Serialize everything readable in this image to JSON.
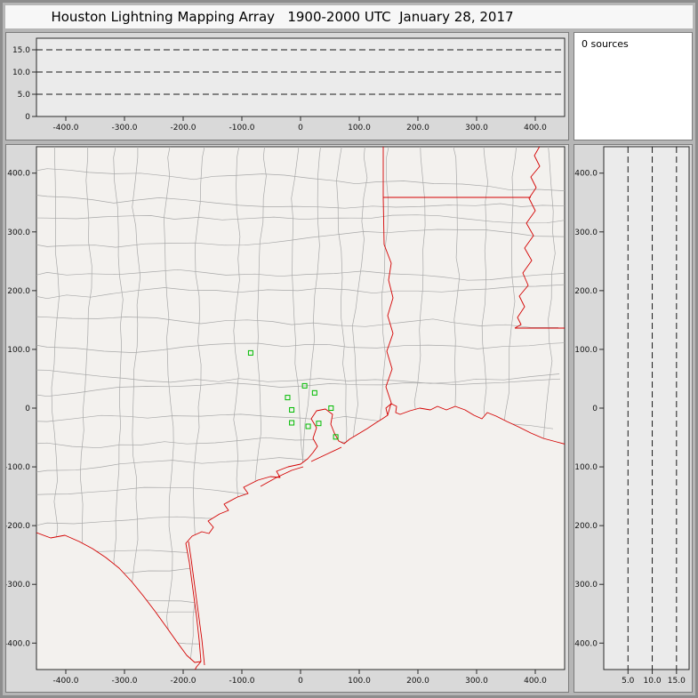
{
  "title": "Houston Lightning Mapping Array   1900-2000 UTC  January 28, 2017",
  "colors": {
    "boundary_red": "#d40000",
    "county_gray": "#a8a8a8",
    "station_green": "#00bb00",
    "grid_line": "#1a1a1a",
    "axis": "#2a2a2a",
    "plot_bg_side": "#ebebeb",
    "plot_bg_map": "#f3f1ee",
    "panel_bg": "#d9d9d9",
    "window_bg": "#b6b6b6"
  },
  "chart_data": [
    {
      "id": "height-vs-eastwest",
      "type": "scatter",
      "x_range": [
        -450,
        450
      ],
      "y_range": [
        0,
        17.6
      ],
      "x_ticks": [
        -400,
        -300,
        -200,
        -100,
        0,
        100,
        200,
        300,
        400
      ],
      "x_tick_labels": [
        "-400.0",
        "-300.0",
        "-200.0",
        "-100.0",
        "0",
        "100.0",
        "200.0",
        "300.0",
        "400.0"
      ],
      "y_ticks": [
        0,
        5,
        10,
        15
      ],
      "y_tick_labels": [
        "0",
        "5.0",
        "10.0",
        "15.0"
      ],
      "y_gridlines": [
        5,
        10,
        15
      ],
      "grid_style": "dashed",
      "points": []
    },
    {
      "id": "source-count",
      "type": "text",
      "label": "0 sources"
    },
    {
      "id": "plan-view-map",
      "type": "scatter",
      "x_range": [
        -450,
        450
      ],
      "y_range": [
        -445,
        445
      ],
      "x_ticks": [
        -400,
        -300,
        -200,
        -100,
        0,
        100,
        200,
        300,
        400
      ],
      "x_tick_labels": [
        "-400.0",
        "-300.0",
        "-200.0",
        "-100.0",
        "0",
        "100.0",
        "200.0",
        "300.0",
        "400.0"
      ],
      "y_ticks": [
        400,
        300,
        200,
        100,
        0,
        -100,
        -200,
        -300,
        -400
      ],
      "y_tick_labels": [
        "400.0",
        "300.0",
        "200.0",
        "100.0",
        "0",
        "-100.0",
        "-200.0",
        "-300.0",
        "-400.0"
      ],
      "map_features": [
        "county-boundaries",
        "state-boundaries",
        "coastline",
        "rivers"
      ],
      "points": [],
      "stations": [
        [
          -85,
          94
        ],
        [
          7,
          38
        ],
        [
          -22,
          18
        ],
        [
          24,
          26
        ],
        [
          -15,
          -3
        ],
        [
          52,
          0
        ],
        [
          -15,
          -25
        ],
        [
          13,
          -31
        ],
        [
          31,
          -26
        ],
        [
          60,
          -49
        ]
      ]
    },
    {
      "id": "height-vs-northsouth",
      "type": "scatter",
      "x_range": [
        0,
        17.6
      ],
      "y_range": [
        -445,
        445
      ],
      "x_ticks": [
        5,
        10,
        15
      ],
      "x_tick_labels": [
        "5.0",
        "10.0",
        "15.0"
      ],
      "x_gridlines": [
        5,
        10,
        15
      ],
      "grid_style": "dashed",
      "y_ticks": [
        400,
        300,
        200,
        100,
        0,
        -100,
        -200,
        -300,
        -400
      ],
      "y_tick_labels": [
        "400.0",
        "300.0",
        "200.0",
        "100.0",
        "0",
        "-100.0",
        "-200.0",
        "-300.0",
        "-400.0"
      ],
      "points": []
    }
  ]
}
